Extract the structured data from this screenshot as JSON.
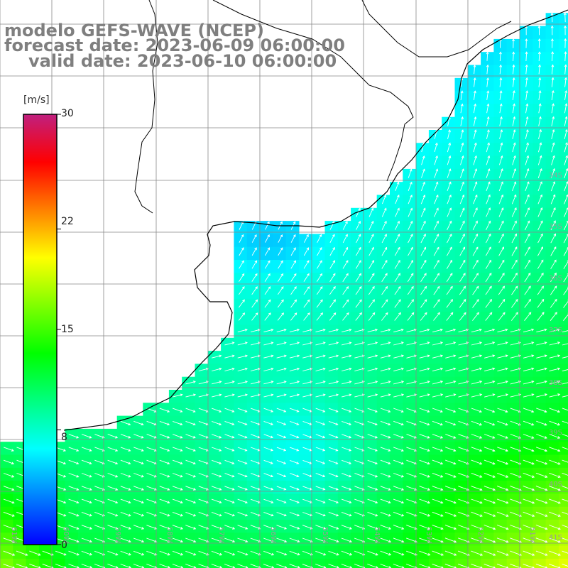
{
  "title": {
    "line1": "modelo GEFS-WAVE (NCEP)",
    "line2": "forecast date: 2023-06-09 06:00:00",
    "line3": "valid date: 2023-06-10 06:00:00"
  },
  "colorbar": {
    "unit": "[m/s]",
    "ticks": [
      "30",
      "22",
      "15",
      "8",
      "0"
    ],
    "tick_values": [
      30,
      22,
      15,
      8,
      0
    ],
    "max": 30,
    "colors": [
      "#0000ff",
      "#0080ff",
      "#00ffff",
      "#00ff80",
      "#00ff00",
      "#80ff00",
      "#ffff00",
      "#ff8000",
      "#ff0000",
      "#c0207f"
    ]
  },
  "map": {
    "lon_range": [
      -61,
      -50.5
    ],
    "lat_range": [
      -41.3,
      -30.5
    ],
    "lat_labels": [
      "34S",
      "35S",
      "36S",
      "37S",
      "38S",
      "39S",
      "40S",
      "41S"
    ],
    "lon_labels": [
      "61W",
      "60W",
      "59W",
      "58W",
      "57W",
      "56W",
      "55W",
      "54W",
      "53W",
      "52W",
      "51W"
    ],
    "land_color": "#ffffff",
    "coast_color": "#000000",
    "grid_color": "#888888",
    "arrow_color": "#ffffff"
  }
}
